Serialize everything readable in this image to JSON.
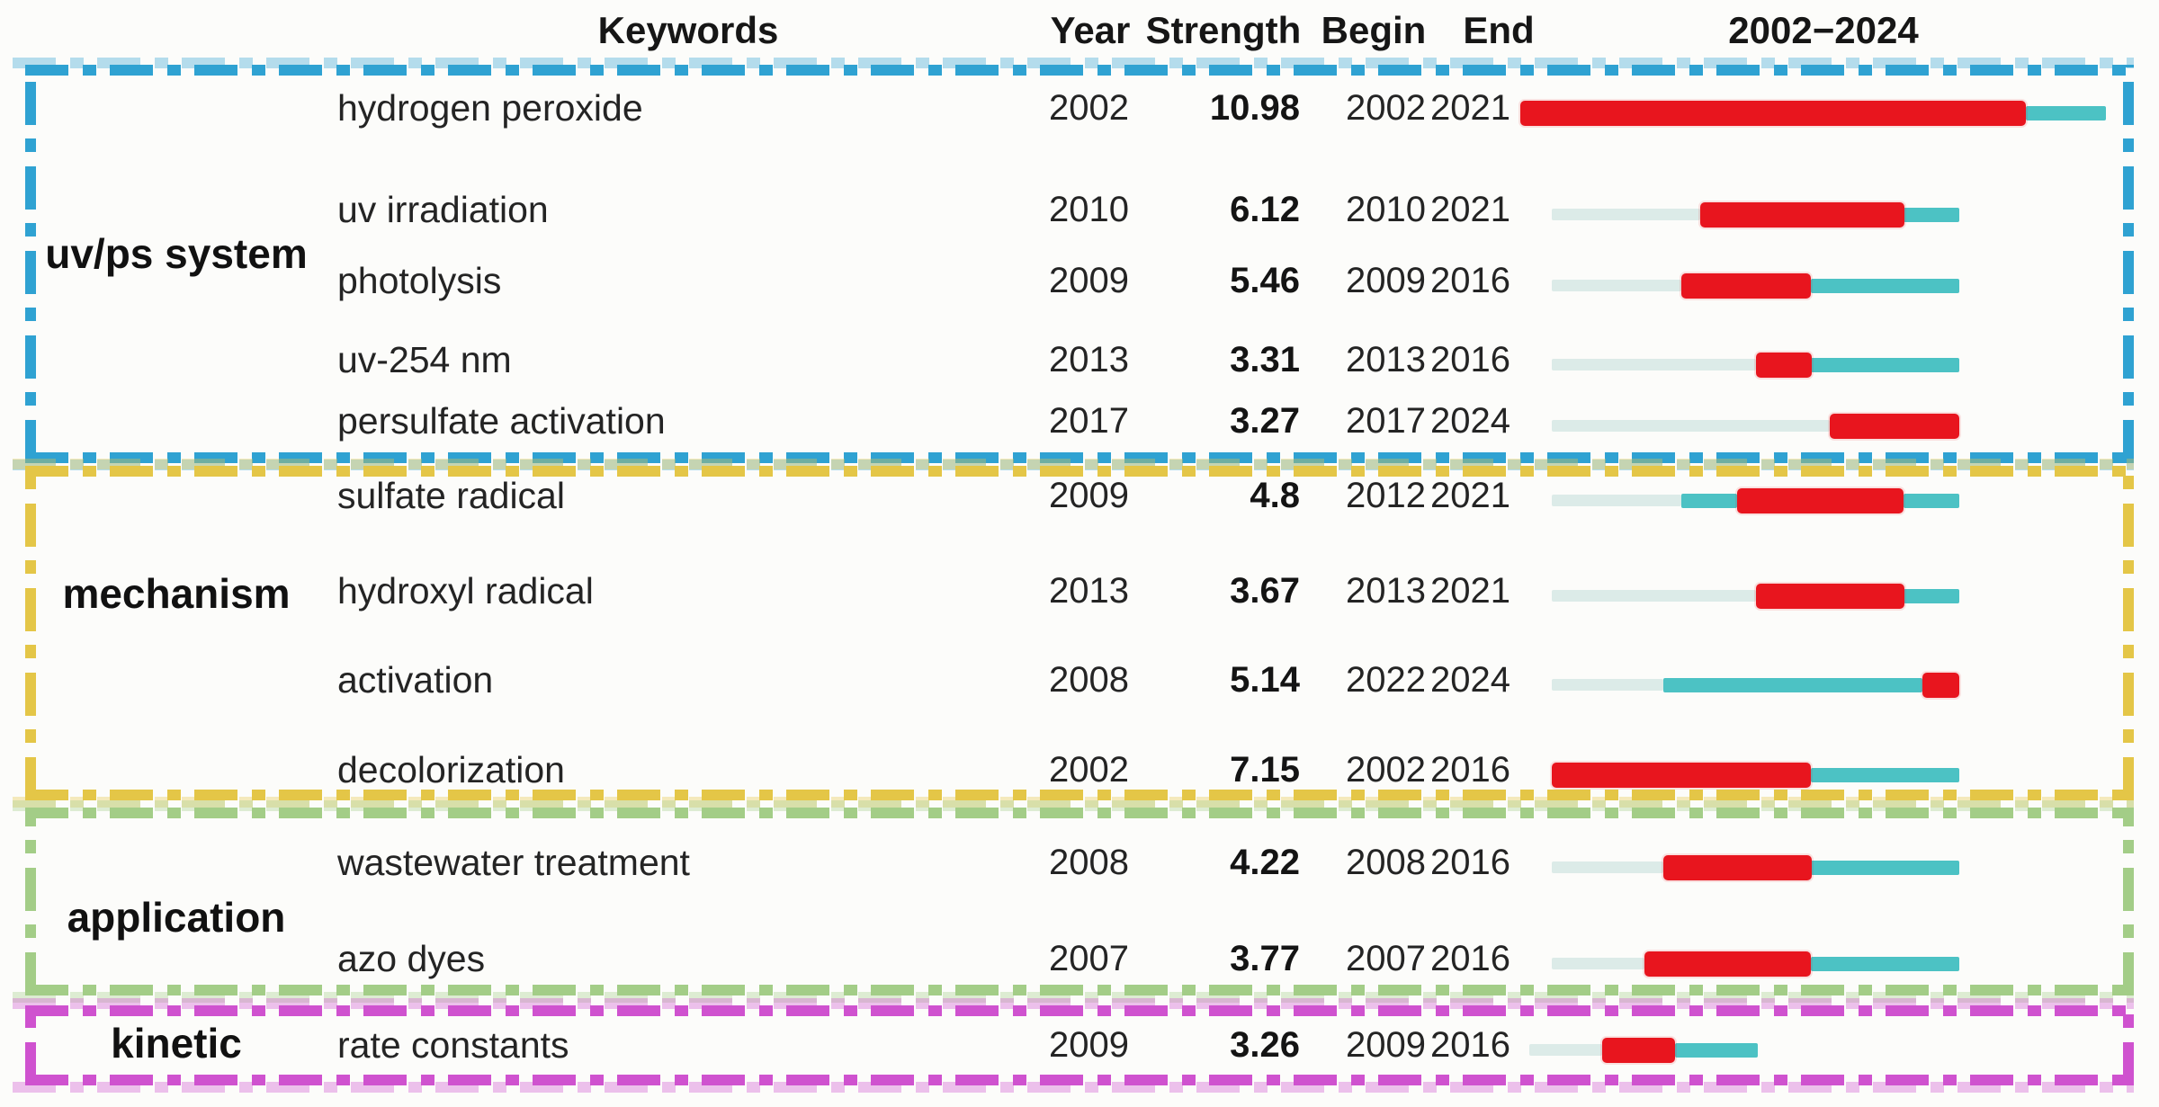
{
  "header": {
    "keywords": "Keywords",
    "year": "Year",
    "strength": "Strength",
    "begin": "Begin",
    "end": "End",
    "range": "2002−2024"
  },
  "colors": {
    "burst_red": "#e8151e",
    "active_teal": "#4cc2c4",
    "inactive_pale": "#dcebe8",
    "box_blue": "#2fa2d2",
    "box_yellow": "#e4c647",
    "box_green": "#a3cd87",
    "box_magenta": "#cf52cf"
  },
  "chart_data": {
    "type": "bar",
    "variant": "keyword-citation-burst-timeline",
    "orientation": "horizontal",
    "x_range": [
      2002,
      2024
    ],
    "x_title": "2002−2024",
    "columns": [
      "Keywords",
      "Year",
      "Strength",
      "Begin",
      "End"
    ],
    "legend": "none",
    "grid": false,
    "segment_colors": {
      "before_year": "#dcebe8",
      "active": "#4cc2c4",
      "burst": "#e8151e"
    },
    "groups": [
      {
        "label": "uv/ps system",
        "box_color": "#2fa2d2",
        "rows": [
          {
            "keyword": "hydrogen peroxide",
            "year": 2002,
            "strength": 10.98,
            "begin": 2002,
            "end": 2021
          },
          {
            "keyword": "uv irradiation",
            "year": 2010,
            "strength": 6.12,
            "begin": 2010,
            "end": 2021
          },
          {
            "keyword": "photolysis",
            "year": 2009,
            "strength": 5.46,
            "begin": 2009,
            "end": 2016
          },
          {
            "keyword": "uv-254 nm",
            "year": 2013,
            "strength": 3.31,
            "begin": 2013,
            "end": 2016
          },
          {
            "keyword": "persulfate activation",
            "year": 2017,
            "strength": 3.27,
            "begin": 2017,
            "end": 2024
          }
        ]
      },
      {
        "label": "mechanism",
        "box_color": "#e4c647",
        "rows": [
          {
            "keyword": "sulfate radical",
            "year": 2009,
            "strength": 4.8,
            "begin": 2012,
            "end": 2021
          },
          {
            "keyword": "hydroxyl radical",
            "year": 2013,
            "strength": 3.67,
            "begin": 2013,
            "end": 2021
          },
          {
            "keyword": "activation",
            "year": 2008,
            "strength": 5.14,
            "begin": 2022,
            "end": 2024
          },
          {
            "keyword": "decolorization",
            "year": 2002,
            "strength": 7.15,
            "begin": 2002,
            "end": 2016
          }
        ]
      },
      {
        "label": "application",
        "box_color": "#a3cd87",
        "rows": [
          {
            "keyword": "wastewater treatment",
            "year": 2008,
            "strength": 4.22,
            "begin": 2008,
            "end": 2016
          },
          {
            "keyword": "azo dyes",
            "year": 2007,
            "strength": 3.77,
            "begin": 2007,
            "end": 2016
          }
        ]
      },
      {
        "label": "kinetic",
        "box_color": "#cf52cf",
        "rows": [
          {
            "keyword": "rate constants",
            "year": 2009,
            "strength": 3.26,
            "begin": 2009,
            "end": 2016
          }
        ]
      }
    ]
  }
}
